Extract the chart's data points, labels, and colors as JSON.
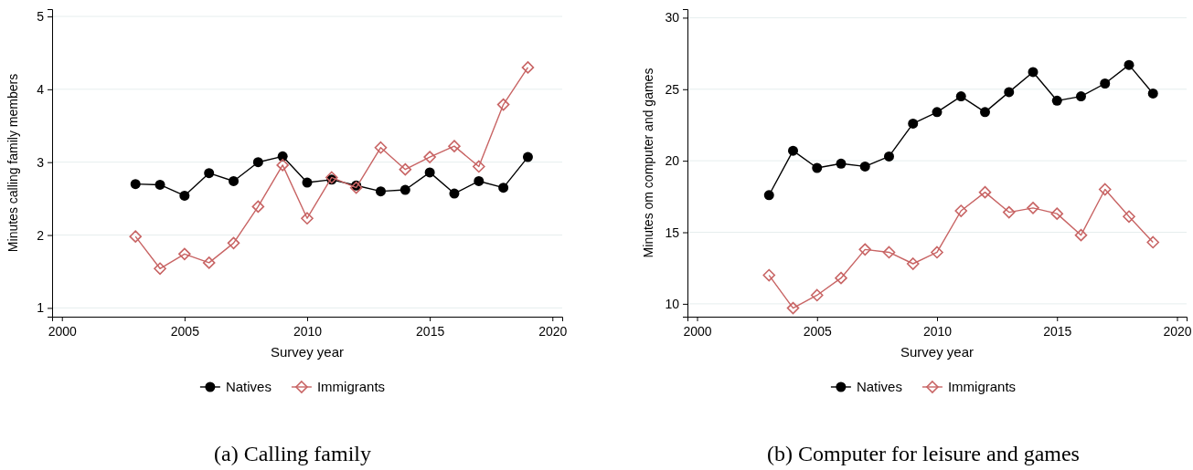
{
  "chart_data": [
    {
      "type": "line",
      "title": "(a) Calling family",
      "xlabel": "Survey year",
      "ylabel": "Minutes calling family members",
      "x": [
        2003,
        2004,
        2005,
        2006,
        2007,
        2008,
        2009,
        2010,
        2011,
        2012,
        2013,
        2014,
        2015,
        2016,
        2017,
        2018,
        2019
      ],
      "series": [
        {
          "name": "Natives",
          "color": "#000000",
          "marker": "circle",
          "values": [
            2.7,
            2.69,
            2.54,
            2.85,
            2.74,
            3.0,
            3.08,
            2.72,
            2.76,
            2.68,
            2.6,
            2.62,
            2.86,
            2.57,
            2.74,
            2.65,
            3.07
          ]
        },
        {
          "name": "Immigrants",
          "color": "#c86464",
          "marker": "diamond",
          "values": [
            1.98,
            1.54,
            1.74,
            1.62,
            1.89,
            2.39,
            2.96,
            2.23,
            2.79,
            2.65,
            3.2,
            2.9,
            3.07,
            3.22,
            2.94,
            3.79,
            4.3
          ]
        }
      ],
      "xlim": [
        1999.6,
        2020.4
      ],
      "xticks": [
        2000,
        2005,
        2010,
        2015,
        2020
      ],
      "ylim": [
        0.88,
        5.1
      ],
      "yticks": [
        1,
        2,
        3,
        4,
        5
      ],
      "grid": "y",
      "legend": "bottom"
    },
    {
      "type": "line",
      "title": "(b) Computer for leisure and games",
      "xlabel": "Survey year",
      "ylabel": "Minutes om computer and games",
      "x": [
        2003,
        2004,
        2005,
        2006,
        2007,
        2008,
        2009,
        2010,
        2011,
        2012,
        2013,
        2014,
        2015,
        2016,
        2017,
        2018,
        2019
      ],
      "series": [
        {
          "name": "Natives",
          "color": "#000000",
          "marker": "circle",
          "values": [
            17.6,
            20.7,
            19.5,
            19.8,
            19.6,
            20.3,
            22.6,
            23.4,
            24.5,
            23.4,
            24.8,
            26.2,
            24.2,
            24.5,
            25.4,
            26.7,
            24.7
          ]
        },
        {
          "name": "Immigrants",
          "color": "#c86464",
          "marker": "diamond",
          "values": [
            12.0,
            9.7,
            10.6,
            11.8,
            13.8,
            13.6,
            12.8,
            13.6,
            16.5,
            17.8,
            16.4,
            16.7,
            16.3,
            14.8,
            18.0,
            16.1,
            14.3
          ]
        }
      ],
      "xlim": [
        1999.6,
        2020.4
      ],
      "xticks": [
        2000,
        2005,
        2010,
        2015,
        2020
      ],
      "ylim": [
        9.1,
        30.6
      ],
      "yticks": [
        10,
        15,
        20,
        25,
        30
      ],
      "grid": "y",
      "legend": "bottom"
    }
  ]
}
